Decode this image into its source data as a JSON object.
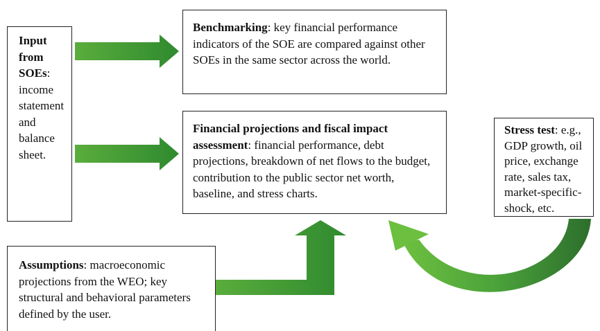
{
  "boxes": [
    {
      "bold": "Input from SOEs",
      "text": ": income statement and balance sheet."
    },
    {
      "bold": "Benchmarking",
      "text": ": key financial performance indicators of the SOE are compared against other SOEs in the same sector across the world."
    },
    {
      "bold": "Financial projections and fiscal impact assessment",
      "text": ": financial performance, debt projections, breakdown of net flows to the budget, contribution to the public sector net worth, baseline, and stress charts."
    },
    {
      "bold": "Stress test",
      "text": ": e.g., GDP growth, oil price, exchange rate, sales tax, market-specific-shock, etc."
    },
    {
      "bold": "Assumptions",
      "text": ": macroeconomic projections from the WEO; key structural and behavioral parameters defined by the user."
    }
  ]
}
